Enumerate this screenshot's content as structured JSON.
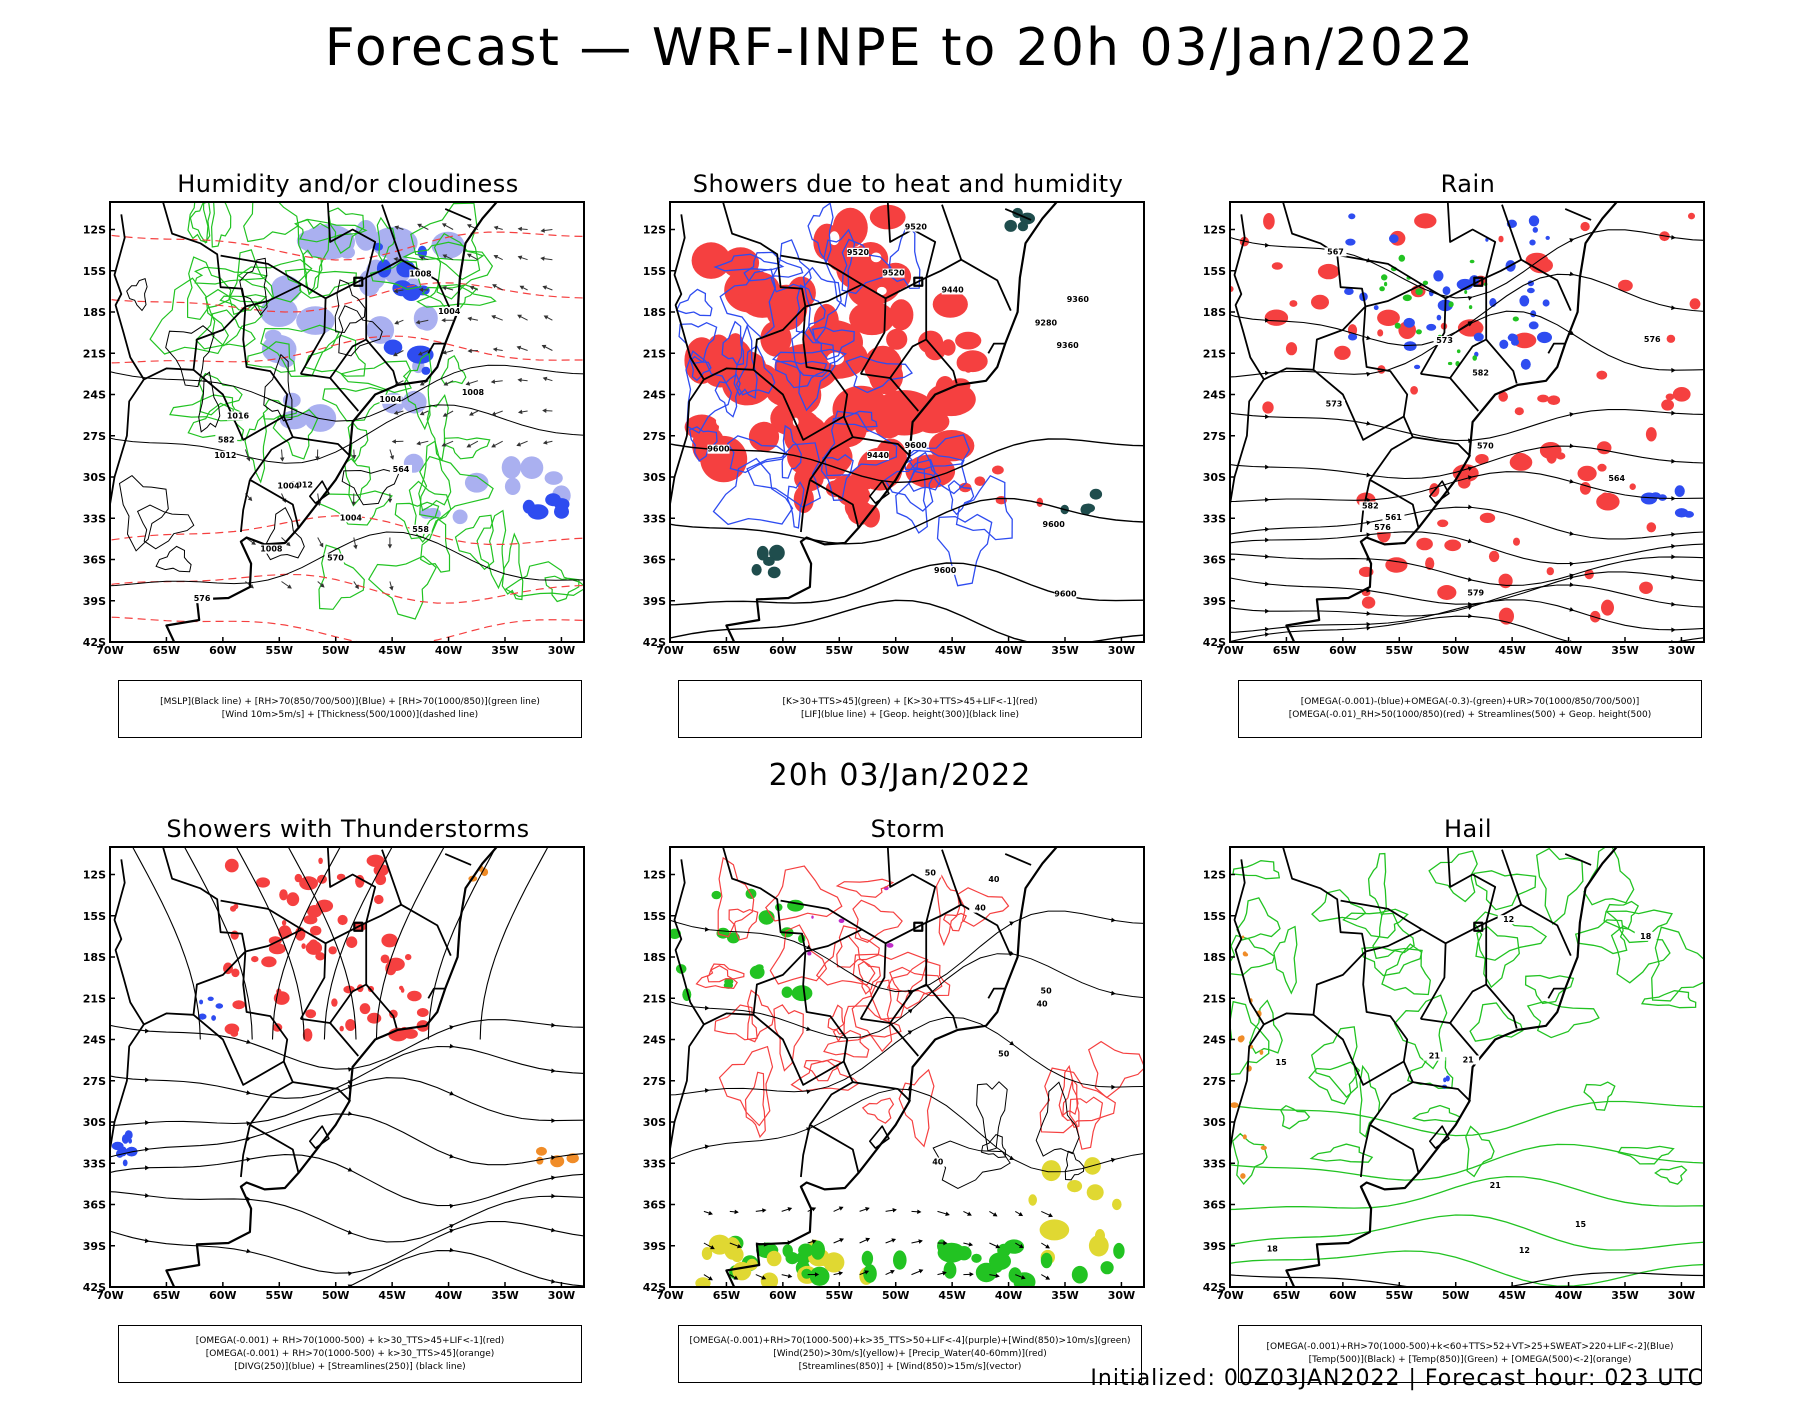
{
  "header": {
    "title": "Forecast — WRF-INPE to 20h 03/Jan/2022"
  },
  "middle": {
    "title": "20h 03/Jan/2022"
  },
  "footer": {
    "text": "Initialized: 00Z03JAN2022 | Forecast hour: 023 UTC"
  },
  "colors": {
    "red": "#f54040",
    "blue": "#2e4cf0",
    "light_blue": "#aab0f0",
    "green": "#22c322",
    "dark_teal": "#1f4d4d",
    "orange": "#f08c28",
    "yellow": "#e0d832",
    "purple": "#c02cc8",
    "black": "#000000"
  },
  "chart_data": [
    {
      "type": "map",
      "title": "Humidity and/or cloudiness",
      "lon_ticks": [
        "70W",
        "65W",
        "60W",
        "55W",
        "50W",
        "45W",
        "40W",
        "35W",
        "30W"
      ],
      "lat_ticks": [
        "12S",
        "15S",
        "18S",
        "21S",
        "24S",
        "27S",
        "30S",
        "33S",
        "36S",
        "39S",
        "42S"
      ],
      "lon_range": [
        -70,
        -28
      ],
      "lat_range": [
        -42,
        -10
      ],
      "legend": [
        "[MSLP](Black line) + [RH>70(850/700/500)](Blue) + [RH>70(1000/850)](green line)",
        "[Wind 10m>5m/s] + [Thickness(500/1000)](dashed line)"
      ],
      "contour_labels": [
        "1004",
        "1008",
        "1012",
        "1016",
        "1004",
        "1008",
        "1004",
        "1012",
        "1008",
        "1004",
        "570",
        "576",
        "582",
        "564",
        "558"
      ]
    },
    {
      "type": "map",
      "title": "Showers due to heat and humidity",
      "lon_ticks": [
        "70W",
        "65W",
        "60W",
        "55W",
        "50W",
        "45W",
        "40W",
        "35W",
        "30W"
      ],
      "lat_ticks": [
        "12S",
        "15S",
        "18S",
        "21S",
        "24S",
        "27S",
        "30S",
        "33S",
        "36S",
        "39S",
        "42S"
      ],
      "lon_range": [
        -70,
        -28
      ],
      "lat_range": [
        -42,
        -10
      ],
      "legend": [
        "[K>30+TTS>45](green) + [K>30+TTS>45+LIF<-1](red)",
        "[LIF](blue line) + [Geop. height(300)](black line)"
      ],
      "contour_labels": [
        "9600",
        "9600",
        "9600",
        "9600",
        "9520",
        "9520",
        "9600",
        "9520",
        "9440",
        "9440",
        "9360",
        "9360",
        "9280"
      ]
    },
    {
      "type": "map",
      "title": "Rain",
      "lon_ticks": [
        "70W",
        "65W",
        "60W",
        "55W",
        "50W",
        "45W",
        "40W",
        "35W",
        "30W"
      ],
      "lat_ticks": [
        "12S",
        "15S",
        "18S",
        "21S",
        "24S",
        "27S",
        "30S",
        "33S",
        "36S",
        "39S",
        "42S"
      ],
      "lon_range": [
        -70,
        -28
      ],
      "lat_range": [
        -42,
        -10
      ],
      "legend": [
        "[OMEGA(-0.001)-(blue)+OMEGA(-0.3)-(green)+UR>70(1000/850/700/500)]",
        "[OMEGA(-0.01)_RH>50(1000/850)(red) + Streamlines(500) + Geop. height(500)"
      ],
      "contour_labels": [
        "582",
        "582",
        "579",
        "576",
        "576",
        "573",
        "573",
        "570",
        "567",
        "564",
        "561"
      ]
    },
    {
      "type": "map",
      "title": "Showers with Thunderstorms",
      "lon_ticks": [
        "70W",
        "65W",
        "60W",
        "55W",
        "50W",
        "45W",
        "40W",
        "35W",
        "30W"
      ],
      "lat_ticks": [
        "12S",
        "15S",
        "18S",
        "21S",
        "24S",
        "27S",
        "30S",
        "33S",
        "36S",
        "39S",
        "42S"
      ],
      "lon_range": [
        -70,
        -28
      ],
      "lat_range": [
        -42,
        -10
      ],
      "legend": [
        "[OMEGA(-0.001) + RH>70(1000-500) + k>30_TTS>45+LIF<-1](red)",
        "[OMEGA(-0.001) + RH>70(1000-500) + k>30_TTS>45](orange)",
        "[DIVG(250)](blue) + [Streamlines(250)] (black line)"
      ],
      "contour_labels": []
    },
    {
      "type": "map",
      "title": "Storm",
      "lon_ticks": [
        "70W",
        "65W",
        "60W",
        "55W",
        "50W",
        "45W",
        "40W",
        "35W",
        "30W"
      ],
      "lat_ticks": [
        "12S",
        "15S",
        "18S",
        "21S",
        "24S",
        "27S",
        "30S",
        "33S",
        "36S",
        "39S",
        "42S"
      ],
      "lon_range": [
        -70,
        -28
      ],
      "lat_range": [
        -42,
        -10
      ],
      "legend": [
        "[OMEGA(-0.001)+RH>70(1000-500)+k>35_TTS>50+LIF<-4](purple)+[Wind(850)>10m/s](green)",
        "[Wind(250)>30m/s](yellow)+ [Precip_Water(40-60mm)](red)",
        "[Streamlines(850)] + [Wind(850)>15m/s](vector)"
      ],
      "contour_labels": [
        "50",
        "40",
        "50",
        "40",
        "40",
        "40",
        "50"
      ]
    },
    {
      "type": "map",
      "title": "Hail",
      "lon_ticks": [
        "70W",
        "65W",
        "60W",
        "55W",
        "50W",
        "45W",
        "40W",
        "35W",
        "30W"
      ],
      "lat_ticks": [
        "12S",
        "15S",
        "18S",
        "21S",
        "24S",
        "27S",
        "30S",
        "33S",
        "36S",
        "39S",
        "42S"
      ],
      "lon_range": [
        -70,
        -28
      ],
      "lat_range": [
        -42,
        -10
      ],
      "legend": [
        "[OMEGA(-0.001)+RH>70(1000-500)+k<60+TTS>52+VT>25+SWEAT>220+LIF<-2](Blue)",
        "[Temp(500)](Black) + [Temp(850)](Green) + [OMEGA(500)<-2](orange)"
      ],
      "contour_labels": [
        "21",
        "18",
        "21",
        "15",
        "12",
        "12",
        "18",
        "15",
        "21"
      ]
    }
  ]
}
